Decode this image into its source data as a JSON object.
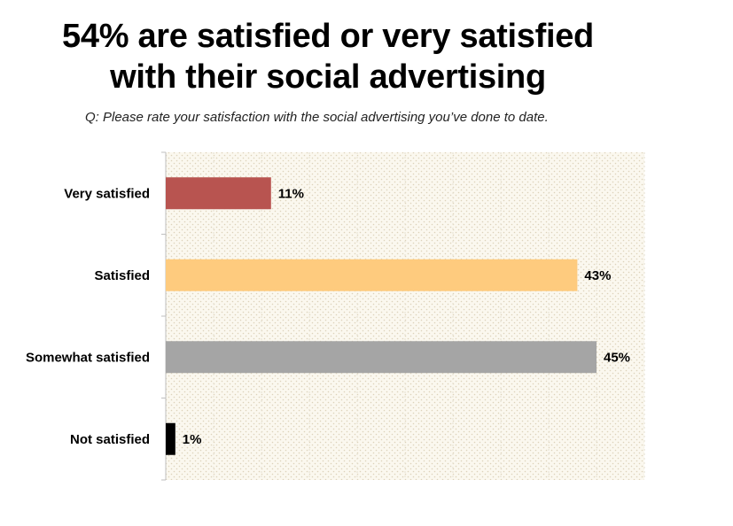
{
  "chart_data": {
    "type": "bar",
    "orientation": "horizontal",
    "title": "54% are satisfied or very satisfied with their social advertising",
    "title_lines": [
      "54% are satisfied or very satisfied",
      "with their social advertising"
    ],
    "subtitle": "Q: Please rate your satisfaction with the social advertising you’ve done to date.",
    "categories": [
      "Very satisfied",
      "Satisfied",
      "Somewhat satisfied",
      "Not satisfied"
    ],
    "values": [
      11,
      43,
      45,
      1
    ],
    "data_labels": [
      "11%",
      "43%",
      "45%",
      "1%"
    ],
    "bar_colors": [
      "#b85450",
      "#fecb7e",
      "#a5a5a5",
      "#000000"
    ],
    "xlim": [
      0,
      50
    ],
    "grid": true,
    "legend": "none"
  }
}
